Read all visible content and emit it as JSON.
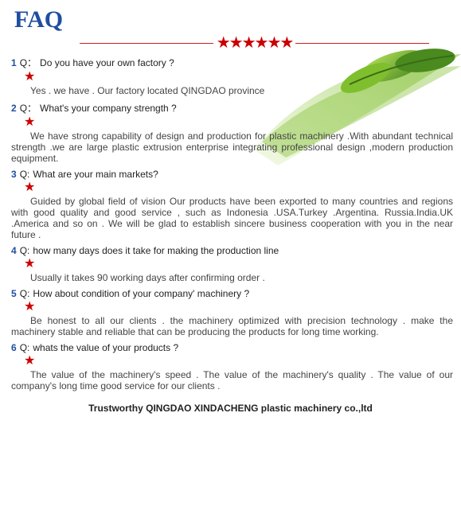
{
  "header": {
    "title": "FAQ",
    "title_color": "#1f4ea0",
    "divider_star_count": 6,
    "divider_star_color": "#c00",
    "divider_line_color": "#c22"
  },
  "faq": [
    {
      "num": "1",
      "q_label": "Q：",
      "question": "Do you have your own factory ?",
      "answer": "Yes . we have . Our factory located QINGDAO    province",
      "justify": false
    },
    {
      "num": "2",
      "q_label": "Q：",
      "question": " What's your company strength ?",
      "answer": "We have strong capability of design and production for plastic machinery .With abundant technical strength .we are large plastic extrusion   enterprise integrating professional design ,modern production equipment.",
      "justify": true
    },
    {
      "num": "3",
      "q_label": "Q:",
      "question": " What are your main markets?",
      "answer": "Guided by global field of vision Our products have been exported to many countries and regions with good quality and good service , such as Indonesia .USA.Turkey .Argentina. Russia.India.UK .America and so on . We will be glad to establish sincere business cooperation with you in the near future .",
      "justify": true
    },
    {
      "num": "4",
      "q_label": "Q:",
      "question": " how many days does it take for making the production line",
      "answer": "Usually it takes 90 working days after confirming order .",
      "justify": false
    },
    {
      "num": "5",
      "q_label": "Q:",
      "question": " How about condition of your company' machinery ?",
      "answer": "Be honest to all our clients . the machinery optimized with precision technology . make the machinery stable and reliable that can be producing the products for long time working.",
      "justify": true
    },
    {
      "num": "6",
      "q_label": "Q:",
      "question": "   whats the value of your products ?",
      "answer": "The value of the machinery's speed . The value of the machinery's quality . The value of our company's long time good service for our clients .",
      "justify": true
    }
  ],
  "footer": {
    "text": "Trustworthy QINGDAO XINDACHENG plastic machinery co.,ltd"
  },
  "decor": {
    "leaf_colors": [
      "#4a8a1f",
      "#7fbf2e",
      "#b4e05a"
    ],
    "swoosh_colors": [
      "#7fbf2e",
      "#e8f5d0"
    ]
  }
}
